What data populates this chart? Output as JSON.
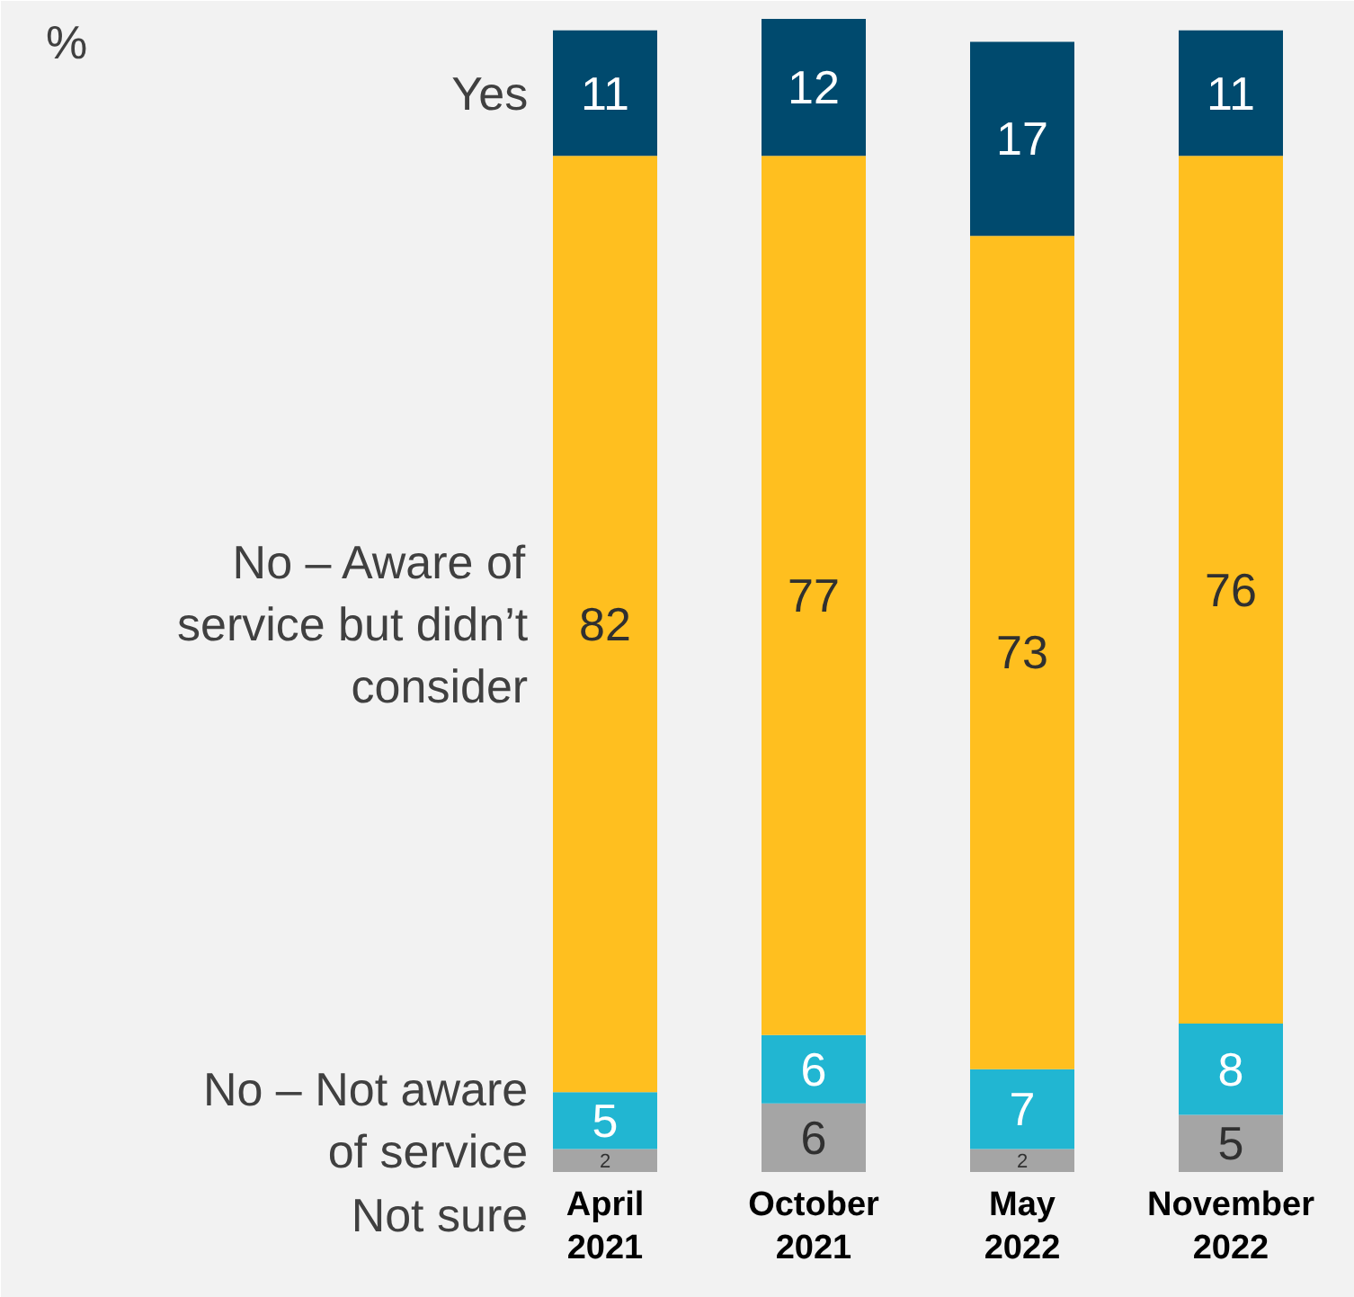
{
  "chart_data": {
    "type": "bar",
    "title": "%",
    "stacked": true,
    "data_labels": true,
    "legend": "left",
    "categories": [
      "April\n2021",
      "October\n2021",
      "May\n2022",
      "November\n2022"
    ],
    "series": [
      {
        "name": "Not sure",
        "color": "#a5a5a5",
        "values": [
          2,
          6,
          2,
          5
        ]
      },
      {
        "name": "No – Not aware\nof service",
        "color": "#21b6d2",
        "values": [
          5,
          6,
          7,
          8
        ]
      },
      {
        "name": "No – Aware of\nservice but didn’t\nconsider",
        "color": "#ffbf1f",
        "values": [
          82,
          77,
          73,
          76
        ]
      },
      {
        "name": "Yes",
        "color": "#004a6e",
        "values": [
          11,
          12,
          17,
          11
        ]
      }
    ]
  }
}
